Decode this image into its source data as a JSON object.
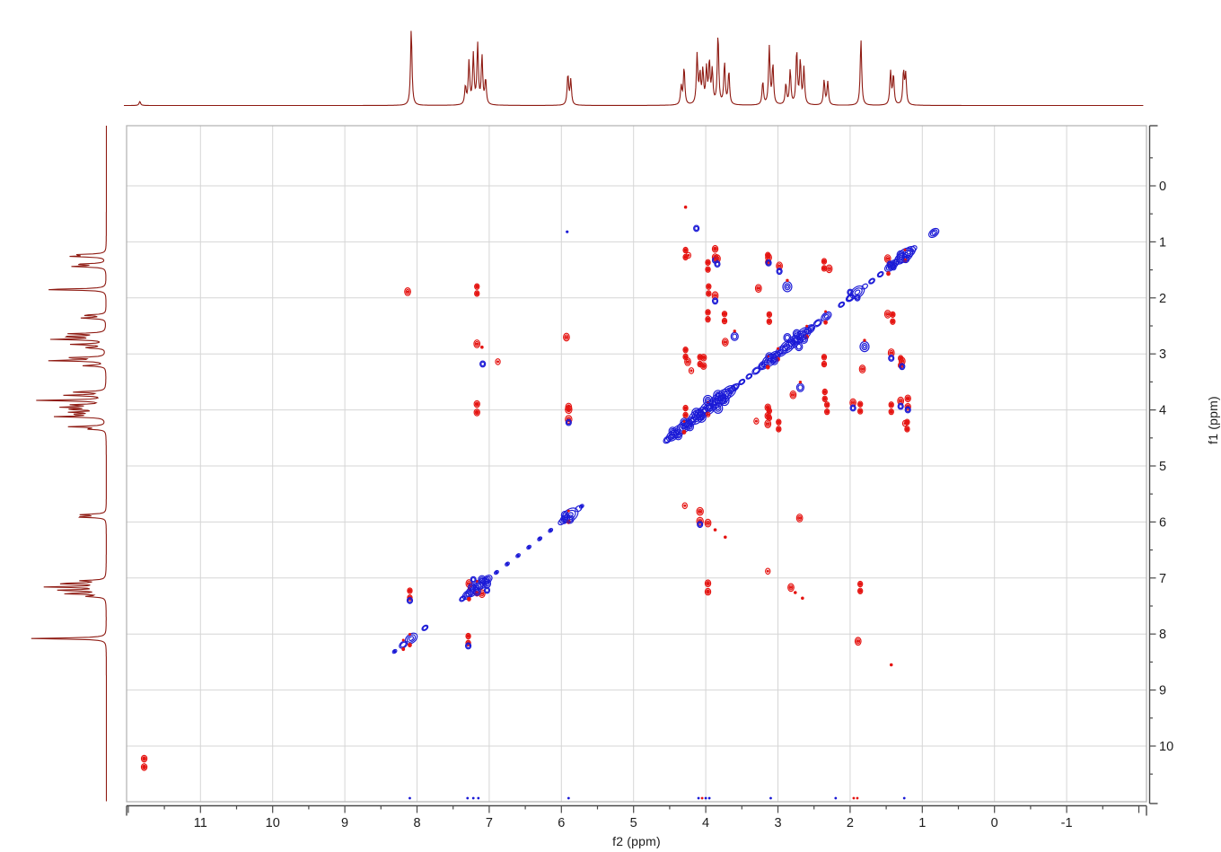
{
  "window": {
    "title": "2D NMR contour spectrum with 1H projections"
  },
  "chart_data": {
    "type": "heatmap",
    "description": "Homonuclear 1H-1H 2D NMR contour plot (NOESY/ROESY-style): blue diagonal peaks, red off-diagonal cross peaks, dark-red 1D proton projection traces on top and left edges",
    "title": "",
    "xlabel": "f2 (ppm)",
    "ylabel": "f1 (ppm)",
    "xlim": [
      12.1,
      -2.1
    ],
    "ylim": [
      -1.07,
      11.0
    ],
    "x_axis_reversed": true,
    "y_axis_increases_downward": true,
    "grid": true,
    "x_ticks": [
      11,
      10,
      9,
      8,
      7,
      6,
      5,
      4,
      3,
      2,
      1,
      0,
      -1
    ],
    "y_ticks": [
      0,
      1,
      2,
      3,
      4,
      5,
      6,
      7,
      8,
      9,
      10
    ],
    "minor_tick_step": 0.5,
    "colors": {
      "projection_trace": "#8e1a12",
      "diagonal_contour": "#1b1ad6",
      "cross_peak_contour": "#e51411",
      "gridline": "#d6d6d6",
      "plot_border": "#b0b0b0",
      "axis": "#4a4a4a"
    },
    "projection_peaks_ppm_height": [
      [
        11.84,
        0.05
      ],
      [
        8.08,
        0.93
      ],
      [
        7.33,
        0.22
      ],
      [
        7.28,
        0.52
      ],
      [
        7.22,
        0.6
      ],
      [
        7.16,
        0.72
      ],
      [
        7.1,
        0.58
      ],
      [
        7.05,
        0.3
      ],
      [
        5.91,
        0.37
      ],
      [
        5.87,
        0.3
      ],
      [
        4.34,
        0.22
      ],
      [
        4.3,
        0.45
      ],
      [
        4.12,
        0.6
      ],
      [
        4.08,
        0.35
      ],
      [
        4.04,
        0.4
      ],
      [
        3.99,
        0.42
      ],
      [
        3.95,
        0.5
      ],
      [
        3.91,
        0.4
      ],
      [
        3.83,
        0.85
      ],
      [
        3.74,
        0.5
      ],
      [
        3.68,
        0.4
      ],
      [
        3.21,
        0.28
      ],
      [
        3.12,
        0.7
      ],
      [
        3.07,
        0.48
      ],
      [
        2.89,
        0.25
      ],
      [
        2.83,
        0.42
      ],
      [
        2.74,
        0.65
      ],
      [
        2.69,
        0.52
      ],
      [
        2.64,
        0.44
      ],
      [
        2.36,
        0.3
      ],
      [
        2.31,
        0.28
      ],
      [
        1.85,
        0.8
      ],
      [
        1.44,
        0.4
      ],
      [
        1.4,
        0.36
      ],
      [
        1.26,
        0.4
      ],
      [
        1.23,
        0.36
      ]
    ],
    "diagonal_peaks_ppm_size": [
      [
        0.84,
        5
      ],
      [
        1.18,
        6
      ],
      [
        1.24,
        8
      ],
      [
        1.3,
        6
      ],
      [
        1.4,
        5
      ],
      [
        1.45,
        5
      ],
      [
        1.58,
        3
      ],
      [
        1.7,
        3
      ],
      [
        1.9,
        7
      ],
      [
        2.0,
        4
      ],
      [
        2.12,
        3
      ],
      [
        2.33,
        5
      ],
      [
        2.45,
        4
      ],
      [
        2.56,
        5
      ],
      [
        2.64,
        7
      ],
      [
        2.71,
        7
      ],
      [
        2.79,
        7
      ],
      [
        2.87,
        7
      ],
      [
        2.95,
        6
      ],
      [
        3.05,
        6
      ],
      [
        3.12,
        7
      ],
      [
        3.2,
        5
      ],
      [
        3.3,
        4
      ],
      [
        3.4,
        3
      ],
      [
        3.5,
        3
      ],
      [
        3.6,
        4
      ],
      [
        3.68,
        7
      ],
      [
        3.76,
        8
      ],
      [
        3.83,
        8
      ],
      [
        3.9,
        7
      ],
      [
        3.97,
        8
      ],
      [
        4.06,
        7
      ],
      [
        4.13,
        8
      ],
      [
        4.22,
        6
      ],
      [
        4.3,
        7
      ],
      [
        4.38,
        7
      ],
      [
        4.46,
        6
      ],
      [
        4.53,
        4
      ],
      [
        5.72,
        2
      ],
      [
        5.88,
        8
      ],
      [
        5.95,
        5
      ],
      [
        6.15,
        2
      ],
      [
        6.3,
        2
      ],
      [
        6.45,
        2
      ],
      [
        6.6,
        2
      ],
      [
        6.75,
        2
      ],
      [
        6.9,
        2
      ],
      [
        7.03,
        5
      ],
      [
        7.1,
        6
      ],
      [
        7.17,
        6
      ],
      [
        7.24,
        6
      ],
      [
        7.3,
        5
      ],
      [
        7.37,
        3
      ],
      [
        7.89,
        3
      ],
      [
        8.08,
        6
      ],
      [
        8.19,
        4
      ],
      [
        8.31,
        2
      ]
    ],
    "diagonal_red_accents_ppm_size": [
      [
        1.24,
        4
      ],
      [
        1.47,
        4
      ],
      [
        2.34,
        4
      ],
      [
        2.6,
        4
      ],
      [
        3.0,
        4
      ],
      [
        3.14,
        4
      ],
      [
        3.97,
        5
      ],
      [
        4.3,
        4
      ],
      [
        5.9,
        4
      ],
      [
        7.17,
        5
      ],
      [
        7.28,
        4
      ],
      [
        8.1,
        4
      ],
      [
        8.19,
        3
      ]
    ],
    "cross_peaks_f2_f1_color_size_mirror": [
      [
        11.78,
        10.3,
        "r",
        6,
        false
      ],
      [
        8.1,
        7.29,
        "rb",
        5,
        true
      ],
      [
        1.89,
        8.13,
        "r",
        4,
        true
      ],
      [
        1.43,
        8.55,
        "r",
        2,
        false
      ],
      [
        7.28,
        7.1,
        "r",
        4,
        true
      ],
      [
        7.03,
        7.22,
        "b",
        3,
        true
      ],
      [
        7.17,
        3.97,
        "r",
        6,
        true
      ],
      [
        7.17,
        2.82,
        "r",
        4,
        true
      ],
      [
        7.1,
        2.88,
        "r",
        2,
        false
      ],
      [
        7.09,
        3.18,
        "b",
        3,
        false
      ],
      [
        7.17,
        1.86,
        "r",
        5,
        true
      ],
      [
        3.14,
        6.88,
        "r",
        3,
        true
      ],
      [
        5.9,
        4.08,
        "rb",
        7,
        true
      ],
      [
        5.9,
        3.95,
        "r",
        4,
        false
      ],
      [
        3.97,
        6.02,
        "r",
        4,
        false
      ],
      [
        5.93,
        2.7,
        "r",
        4,
        true
      ],
      [
        5.92,
        0.82,
        "b",
        2,
        false
      ],
      [
        4.29,
        5.71,
        "r",
        3,
        false
      ],
      [
        3.87,
        6.14,
        "r",
        2,
        false
      ],
      [
        3.73,
        6.27,
        "r",
        2,
        false
      ],
      [
        2.76,
        7.26,
        "r",
        2,
        false
      ],
      [
        2.66,
        7.36,
        "r",
        2,
        false
      ],
      [
        4.28,
        0.38,
        "r",
        2,
        false
      ],
      [
        4.13,
        0.76,
        "b",
        3,
        false
      ],
      [
        4.28,
        1.21,
        "r",
        5,
        true
      ],
      [
        3.87,
        1.2,
        "rb",
        6,
        true
      ],
      [
        3.14,
        1.3,
        "r",
        5,
        true
      ],
      [
        2.36,
        1.41,
        "r",
        5,
        true
      ],
      [
        1.48,
        1.3,
        "r",
        4,
        false
      ],
      [
        3.97,
        1.43,
        "r",
        5,
        true
      ],
      [
        3.96,
        1.86,
        "r",
        5,
        true
      ],
      [
        3.27,
        1.83,
        "r",
        4,
        true
      ],
      [
        2.87,
        1.8,
        "br",
        5,
        true
      ],
      [
        3.97,
        2.32,
        "r",
        5,
        true
      ],
      [
        3.74,
        2.35,
        "r",
        5,
        true
      ],
      [
        2.29,
        1.48,
        "r",
        4,
        true
      ],
      [
        4.28,
        2.99,
        "r",
        5,
        true
      ],
      [
        4.08,
        3.12,
        "r",
        5,
        true
      ],
      [
        3.12,
        2.36,
        "r",
        5,
        true
      ],
      [
        2.98,
        1.43,
        "rb",
        4,
        true
      ],
      [
        3.13,
        1.28,
        "rb",
        4,
        true
      ],
      [
        4.2,
        3.3,
        "r",
        3,
        true
      ],
      [
        4.28,
        4.03,
        "r",
        5,
        false
      ],
      [
        4.03,
        3.14,
        "r",
        6,
        true
      ],
      [
        4.25,
        3.14,
        "r",
        4,
        true
      ],
      [
        3.6,
        2.69,
        "br",
        4,
        true
      ],
      [
        3.73,
        2.79,
        "r",
        4,
        true
      ],
      [
        3.87,
        1.96,
        "rb",
        4,
        true
      ],
      [
        3.84,
        1.3,
        "rb",
        4,
        true
      ],
      [
        4.24,
        1.24,
        "r",
        3,
        true
      ],
      [
        2.74,
        2.64,
        "b",
        4,
        true
      ],
      [
        2.87,
        2.71,
        "b",
        4,
        true
      ],
      [
        3.12,
        3.05,
        "b",
        4,
        true
      ],
      [
        3.83,
        3.74,
        "b",
        5,
        true
      ],
      [
        3.97,
        3.83,
        "b",
        5,
        true
      ],
      [
        4.13,
        4.06,
        "b",
        5,
        true
      ],
      [
        4.3,
        4.22,
        "b",
        4,
        true
      ],
      [
        4.46,
        4.38,
        "b",
        4,
        true
      ],
      [
        1.3,
        1.23,
        "b",
        4,
        true
      ],
      [
        1.45,
        1.4,
        "b",
        3,
        true
      ],
      [
        2.0,
        1.9,
        "b",
        3,
        true
      ],
      [
        5.95,
        5.88,
        "b",
        4,
        true
      ],
      [
        7.24,
        7.17,
        "b",
        4,
        true
      ],
      [
        7.1,
        7.03,
        "b",
        4,
        true
      ]
    ],
    "edge_artifacts": {
      "f1": 10.93,
      "points_f2_color": [
        [
          8.1,
          "b"
        ],
        [
          7.3,
          "b"
        ],
        [
          7.22,
          "b"
        ],
        [
          7.15,
          "b"
        ],
        [
          5.9,
          "b"
        ],
        [
          4.1,
          "b"
        ],
        [
          4.05,
          "r"
        ],
        [
          4.0,
          "b"
        ],
        [
          3.95,
          "b"
        ],
        [
          3.1,
          "b"
        ],
        [
          2.2,
          "b"
        ],
        [
          1.95,
          "r"
        ],
        [
          1.9,
          "r"
        ],
        [
          1.25,
          "b"
        ]
      ]
    }
  }
}
